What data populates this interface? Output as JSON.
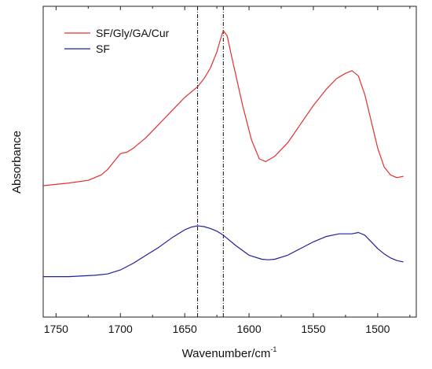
{
  "chart_data": {
    "type": "line",
    "title": "",
    "xlabel": "Wavenumber/cm",
    "xlabel_superscript": "-1",
    "ylabel": "Absorbance",
    "xlim": [
      1760,
      1470
    ],
    "x_reversed": true,
    "ylim": [
      0,
      1
    ],
    "y_ticks_shown": false,
    "x_ticks": [
      1750,
      1700,
      1650,
      1600,
      1550,
      1500
    ],
    "x_tick_labels": [
      "1750",
      "1700",
      "1650",
      "1600",
      "1550",
      "1500"
    ],
    "grid": false,
    "legend_position": "top-left",
    "reference_lines_x": [
      1640,
      1620
    ],
    "series": [
      {
        "name": "SF/Gly/GA/Cur",
        "color": "#e03030",
        "x": [
          1760,
          1740,
          1725,
          1715,
          1710,
          1705,
          1700,
          1695,
          1690,
          1680,
          1670,
          1660,
          1650,
          1645,
          1640,
          1635,
          1630,
          1625,
          1622,
          1620,
          1617,
          1612,
          1605,
          1598,
          1592,
          1587,
          1580,
          1570,
          1560,
          1550,
          1540,
          1532,
          1525,
          1520,
          1515,
          1510,
          1505,
          1500,
          1495,
          1490,
          1485,
          1480
        ],
        "y": [
          0.4,
          0.41,
          0.42,
          0.44,
          0.46,
          0.49,
          0.52,
          0.525,
          0.54,
          0.58,
          0.63,
          0.68,
          0.73,
          0.75,
          0.77,
          0.8,
          0.84,
          0.9,
          0.95,
          0.98,
          0.96,
          0.85,
          0.7,
          0.57,
          0.5,
          0.49,
          0.51,
          0.56,
          0.63,
          0.7,
          0.76,
          0.8,
          0.82,
          0.83,
          0.81,
          0.74,
          0.64,
          0.54,
          0.47,
          0.44,
          0.43,
          0.435
        ]
      },
      {
        "name": "SF",
        "color": "#2020a0",
        "x": [
          1760,
          1740,
          1720,
          1710,
          1700,
          1690,
          1680,
          1670,
          1660,
          1650,
          1645,
          1640,
          1635,
          1630,
          1625,
          1620,
          1610,
          1600,
          1590,
          1585,
          1580,
          1570,
          1560,
          1550,
          1540,
          1530,
          1525,
          1520,
          1515,
          1510,
          1505,
          1500,
          1495,
          1490,
          1485,
          1480
        ],
        "y": [
          0.06,
          0.06,
          0.065,
          0.07,
          0.085,
          0.11,
          0.14,
          0.17,
          0.205,
          0.235,
          0.245,
          0.25,
          0.247,
          0.24,
          0.23,
          0.215,
          0.175,
          0.14,
          0.125,
          0.123,
          0.125,
          0.14,
          0.165,
          0.19,
          0.21,
          0.22,
          0.22,
          0.22,
          0.225,
          0.215,
          0.19,
          0.165,
          0.145,
          0.13,
          0.12,
          0.115
        ]
      }
    ]
  }
}
